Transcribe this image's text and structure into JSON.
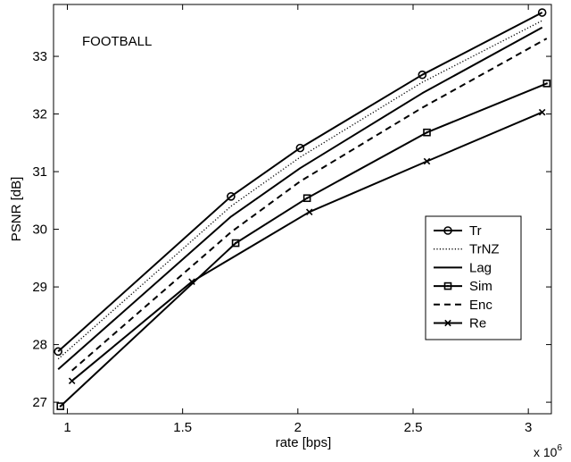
{
  "chart_data": {
    "type": "line",
    "title": "",
    "annotation": "FOOTBALL",
    "xlabel": "rate [bps]",
    "ylabel": "PSNR [dB]",
    "x_multiplier_label": "x 10",
    "x_multiplier_exp": "6",
    "xlim": [
      0.94,
      3.1
    ],
    "ylim": [
      26.8,
      33.9
    ],
    "grid": false,
    "legend_position": "lower-right",
    "xticks": [
      1,
      1.5,
      2,
      2.5,
      3
    ],
    "xtick_labels": [
      "1",
      "1.5",
      "2",
      "2.5",
      "3"
    ],
    "yticks": [
      27,
      28,
      29,
      30,
      31,
      32,
      33
    ],
    "ytick_labels": [
      "27",
      "28",
      "29",
      "30",
      "31",
      "32",
      "33"
    ],
    "series": [
      {
        "name": "Tr",
        "style": "solid",
        "marker": "circle",
        "x": [
          0.96,
          1.71,
          2.01,
          2.54,
          3.06
        ],
        "y": [
          27.88,
          30.57,
          31.41,
          32.68,
          33.76
        ]
      },
      {
        "name": "TrNZ",
        "style": "dotted",
        "marker": "none",
        "x": [
          0.96,
          1.71,
          2.01,
          2.54,
          3.06
        ],
        "y": [
          27.75,
          30.4,
          31.25,
          32.55,
          33.62
        ]
      },
      {
        "name": "Lag",
        "style": "solid",
        "marker": "none",
        "x": [
          0.96,
          1.71,
          2.01,
          2.54,
          3.06
        ],
        "y": [
          27.57,
          30.22,
          31.06,
          32.36,
          33.5
        ]
      },
      {
        "name": "Sim",
        "style": "solid",
        "marker": "square",
        "x": [
          0.97,
          1.73,
          2.04,
          2.56,
          3.08
        ],
        "y": [
          26.93,
          29.76,
          30.54,
          31.68,
          32.53
        ]
      },
      {
        "name": "Enc",
        "style": "dashed",
        "marker": "none",
        "x": [
          1.02,
          1.71,
          2.01,
          2.54,
          3.08
        ],
        "y": [
          27.55,
          29.95,
          30.83,
          32.11,
          33.31
        ]
      },
      {
        "name": "Re",
        "style": "solid",
        "marker": "x",
        "x": [
          1.02,
          1.54,
          2.05,
          2.56,
          3.06
        ],
        "y": [
          27.37,
          29.09,
          30.3,
          31.18,
          32.03
        ]
      }
    ]
  }
}
